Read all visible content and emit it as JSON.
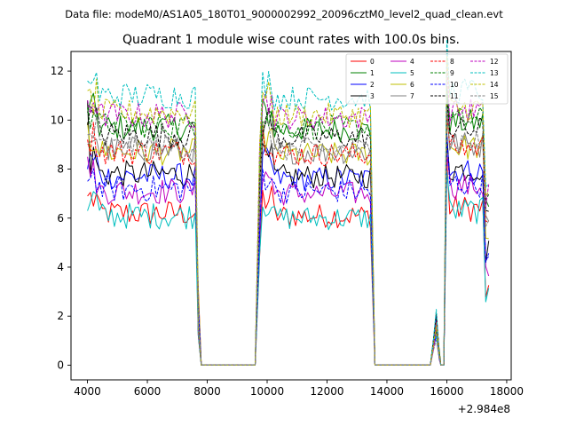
{
  "figure": {
    "suptitle": "Data file: modeM0/AS1A05_180T01_9000002992_20096cztM0_level2_quad_clean.evt"
  },
  "chart_data": {
    "type": "line",
    "title": "Quadrant 1 module wise count rates with 100.0s bins.",
    "xlabel": "",
    "ylabel": "",
    "x_offset_label": "+2.984e8",
    "xlim": [
      3450,
      18150
    ],
    "ylim": [
      -0.6,
      12.8
    ],
    "xticks": [
      4000,
      6000,
      8000,
      10000,
      12000,
      14000,
      16000,
      18000
    ],
    "xtick_labels": [
      "4000",
      "6000",
      "8000",
      "10000",
      "12000",
      "14000",
      "16000",
      "18000"
    ],
    "yticks": [
      0,
      2,
      4,
      6,
      8,
      10,
      12
    ],
    "ytick_labels": [
      "0",
      "2",
      "4",
      "6",
      "8",
      "10",
      "12"
    ],
    "grid": false,
    "legend": {
      "placement": "top-right",
      "columns": 4
    },
    "bin_seconds": 100,
    "segments": [
      {
        "start": 4000,
        "end": 7650
      },
      {
        "start": 9750,
        "end": 13500
      },
      {
        "start": 15650,
        "end": 15900
      },
      {
        "start": 16000,
        "end": 17400
      }
    ],
    "gaps": [
      {
        "start": 7800,
        "end": 9600
      },
      {
        "start": 13600,
        "end": 15450
      }
    ],
    "series": [
      {
        "name": "0",
        "color": "#ff0000",
        "dashed": false,
        "level": 6.2,
        "start": 6.9
      },
      {
        "name": "1",
        "color": "#008000",
        "dashed": false,
        "level": 9.7,
        "start": 10.3
      },
      {
        "name": "2",
        "color": "#0000ff",
        "dashed": false,
        "level": 7.7,
        "start": 8.0
      },
      {
        "name": "3",
        "color": "#000000",
        "dashed": false,
        "level": 7.8,
        "start": 10.8
      },
      {
        "name": "4",
        "color": "#bf00bf",
        "dashed": false,
        "level": 7.1,
        "start": 8.5
      },
      {
        "name": "5",
        "color": "#00bfbf",
        "dashed": false,
        "level": 6.1,
        "start": 6.3
      },
      {
        "name": "6",
        "color": "#bfbf00",
        "dashed": false,
        "level": 8.7,
        "start": 9.9
      },
      {
        "name": "7",
        "color": "#808080",
        "dashed": false,
        "level": 8.8,
        "start": 9.0
      },
      {
        "name": "8",
        "color": "#ff0000",
        "dashed": true,
        "level": 8.7,
        "start": 9.2
      },
      {
        "name": "9",
        "color": "#008000",
        "dashed": true,
        "level": 9.8,
        "start": 10.5
      },
      {
        "name": "10",
        "color": "#0000ff",
        "dashed": true,
        "level": 7.2,
        "start": 7.5
      },
      {
        "name": "11",
        "color": "#000000",
        "dashed": true,
        "level": 9.4,
        "start": 9.8
      },
      {
        "name": "12",
        "color": "#bf00bf",
        "dashed": true,
        "level": 10.2,
        "start": 10.8
      },
      {
        "name": "13",
        "color": "#00bfbf",
        "dashed": true,
        "level": 11.0,
        "start": 11.6
      },
      {
        "name": "14",
        "color": "#bfbf00",
        "dashed": true,
        "level": 10.3,
        "start": 11.2
      },
      {
        "name": "15",
        "color": "#808080",
        "dashed": true,
        "level": 8.9,
        "start": 9.4
      }
    ]
  }
}
